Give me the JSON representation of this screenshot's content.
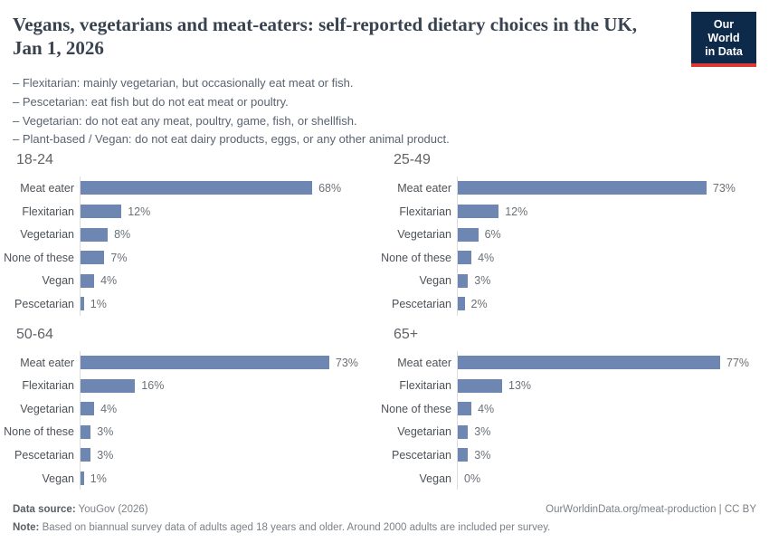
{
  "header": {
    "title": "Vegans, vegetarians and meat-eaters: self-reported dietary choices in the UK, Jan 1, 2026",
    "subtitle_lines": [
      "– Flexitarian: mainly vegetarian, but occasionally eat meat or fish.",
      "– Pescetarian: eat fish but do not eat meat or poultry.",
      "– Vegetarian: do not eat any meat, poultry, game, fish, or shellfish.",
      "– Plant-based / Vegan: do not eat dairy products, eggs, or any other animal product."
    ],
    "logo": {
      "line1": "Our World",
      "line2": "in Data"
    }
  },
  "chart_data": {
    "type": "bar",
    "orientation": "horizontal",
    "unit": "%",
    "value_scale_max": 77,
    "xlim": [
      0,
      77
    ],
    "grid": false,
    "panels": [
      {
        "title": "18-24",
        "categories": [
          "Meat eater",
          "Flexitarian",
          "Vegetarian",
          "None of these",
          "Vegan",
          "Pescetarian"
        ],
        "values": [
          68,
          12,
          8,
          7,
          4,
          1
        ],
        "value_labels": [
          "68%",
          "12%",
          "8%",
          "7%",
          "4%",
          "1%"
        ]
      },
      {
        "title": "25-49",
        "categories": [
          "Meat eater",
          "Flexitarian",
          "Vegetarian",
          "None of these",
          "Vegan",
          "Pescetarian"
        ],
        "values": [
          73,
          12,
          6,
          4,
          3,
          2
        ],
        "value_labels": [
          "73%",
          "12%",
          "6%",
          "4%",
          "3%",
          "2%"
        ]
      },
      {
        "title": "50-64",
        "categories": [
          "Meat eater",
          "Flexitarian",
          "Vegetarian",
          "None of these",
          "Pescetarian",
          "Vegan"
        ],
        "values": [
          73,
          16,
          4,
          3,
          3,
          1
        ],
        "value_labels": [
          "73%",
          "16%",
          "4%",
          "3%",
          "3%",
          "1%"
        ]
      },
      {
        "title": "65+",
        "categories": [
          "Meat eater",
          "Flexitarian",
          "None of these",
          "Vegetarian",
          "Pescetarian",
          "Vegan"
        ],
        "values": [
          77,
          13,
          4,
          3,
          3,
          0
        ],
        "value_labels": [
          "77%",
          "13%",
          "4%",
          "3%",
          "3%",
          "0%"
        ]
      }
    ]
  },
  "footer": {
    "datasource_label": "Data source:",
    "datasource_value": " YouGov (2026)",
    "attribution": "OurWorldinData.org/meat-production | CC BY",
    "note_label": "Note:",
    "note_value": " Based on biannual survey data of adults aged 18 years and older. Around 2000 adults are included per survey."
  },
  "colors": {
    "bar": "#6e87b2",
    "axis": "#dcdcdc",
    "title": "#394350",
    "subtitle": "#5a6370",
    "panel_title": "#5f6368",
    "row_label": "#4d5257",
    "value_label": "#6b7076",
    "footer": "#7c8187",
    "footer_strong": "#5a5f63",
    "logo_bg": "#0e2a4b",
    "logo_red": "#d93a34"
  }
}
